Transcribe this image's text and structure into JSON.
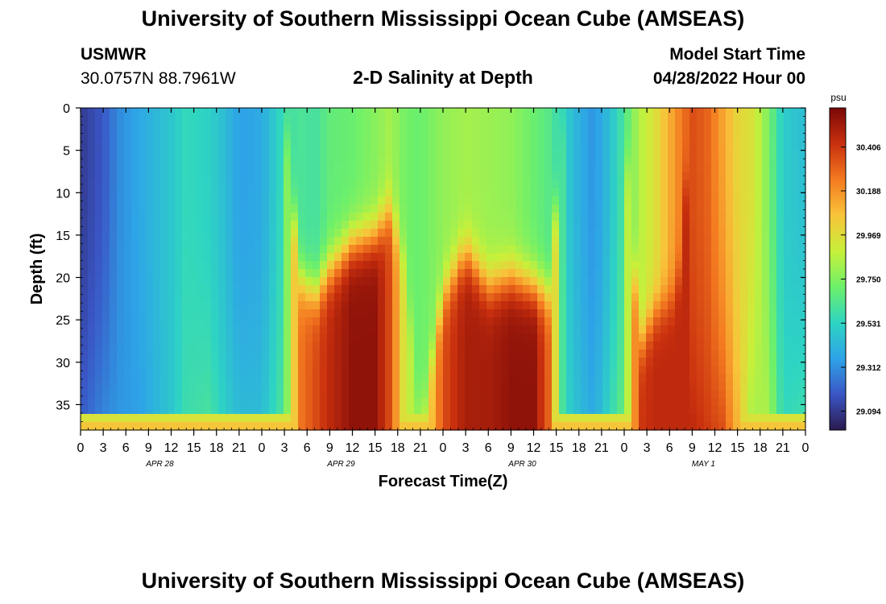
{
  "header": {
    "title": "University of Southern Mississippi Ocean Cube (AMSEAS)",
    "station": "USMWR",
    "coords": "30.0757N  88.7961W",
    "subtitle": "2-D Salinity at Depth",
    "model_start_label": "Model Start Time",
    "model_start_value": "04/28/2022 Hour 00"
  },
  "footer": {
    "title": "University of Southern Mississippi Ocean Cube (AMSEAS)"
  },
  "colors": {
    "ramp": [
      "#2b1a4e",
      "#3a56c5",
      "#2ea3e8",
      "#2ed5c2",
      "#6ef06a",
      "#c8f03a",
      "#f8c43a",
      "#f47a20",
      "#c9300e",
      "#7a0808"
    ]
  },
  "chart_data": {
    "type": "heatmap",
    "title": "2-D Salinity at Depth",
    "xlabel": "Forecast Time(Z)",
    "ylabel": "Depth (ft)",
    "x_ticks": [
      "0",
      "3",
      "6",
      "9",
      "12",
      "15",
      "18",
      "21",
      "0",
      "3",
      "6",
      "9",
      "12",
      "15",
      "18",
      "21",
      "0",
      "3",
      "6",
      "9",
      "12",
      "15",
      "18",
      "21",
      "0",
      "3",
      "6",
      "9",
      "12",
      "15",
      "18",
      "21",
      "0"
    ],
    "day_labels": [
      "APR 28",
      "APR 29",
      "APR 30",
      "MAY 1"
    ],
    "xlim_hours": [
      0,
      96
    ],
    "y_ticks": [
      0,
      5,
      10,
      15,
      20,
      25,
      30,
      35
    ],
    "ylim_ft": [
      0,
      38
    ],
    "colorbar": {
      "unit": "psu",
      "ticks": [
        "30.406",
        "30.188",
        "29.969",
        "29.750",
        "29.531",
        "29.312",
        "29.094"
      ],
      "range": [
        29.0,
        30.6
      ]
    },
    "columns": [
      {
        "h": 0,
        "s": 29.1,
        "b": 29.2,
        "z": 0,
        "sh": 0.0
      },
      {
        "h": 3,
        "s": 29.18,
        "b": 29.3,
        "z": 0,
        "sh": 0.0
      },
      {
        "h": 5,
        "s": 29.3,
        "b": 29.33,
        "z": 0,
        "sh": 0.0
      },
      {
        "h": 8,
        "s": 29.38,
        "b": 29.35,
        "z": 0,
        "sh": 0.0
      },
      {
        "h": 12,
        "s": 29.48,
        "b": 29.48,
        "z": 0,
        "sh": 0.0
      },
      {
        "h": 14,
        "s": 29.55,
        "b": 29.58,
        "z": 0,
        "sh": 0.0
      },
      {
        "h": 17,
        "s": 29.52,
        "b": 29.62,
        "z": 0,
        "sh": 0.0
      },
      {
        "h": 19,
        "s": 29.45,
        "b": 29.52,
        "z": 0,
        "sh": 0.0
      },
      {
        "h": 21,
        "s": 29.35,
        "b": 29.45,
        "z": 0,
        "sh": 0.0
      },
      {
        "h": 24,
        "s": 29.38,
        "b": 29.45,
        "z": 0,
        "sh": 0.0
      },
      {
        "h": 27,
        "s": 29.58,
        "b": 29.65,
        "z": 0,
        "sh": 0.0
      },
      {
        "h": 29,
        "s": 29.62,
        "b": 30.25,
        "z": 20,
        "sh": 0.0
      },
      {
        "h": 31,
        "s": 29.6,
        "b": 30.35,
        "z": 22,
        "sh": 0.0
      },
      {
        "h": 33,
        "s": 29.68,
        "b": 30.45,
        "z": 19,
        "sh": 0.0
      },
      {
        "h": 36,
        "s": 29.7,
        "b": 30.55,
        "z": 16,
        "sh": 0.0
      },
      {
        "h": 39,
        "s": 29.76,
        "b": 30.55,
        "z": 15,
        "sh": 0.0
      },
      {
        "h": 41,
        "s": 29.82,
        "b": 30.35,
        "z": 12,
        "sh": 0.0
      },
      {
        "h": 43,
        "s": 29.72,
        "b": 29.9,
        "z": 18,
        "sh": 0.0
      },
      {
        "h": 45,
        "s": 29.7,
        "b": 29.8,
        "z": 38,
        "sh": 0.0
      },
      {
        "h": 48,
        "s": 29.78,
        "b": 30.35,
        "z": 22,
        "sh": 0.0
      },
      {
        "h": 51,
        "s": 29.82,
        "b": 30.5,
        "z": 17,
        "sh": 0.0
      },
      {
        "h": 54,
        "s": 29.8,
        "b": 30.5,
        "z": 21,
        "sh": 0.0
      },
      {
        "h": 57,
        "s": 29.78,
        "b": 30.55,
        "z": 20,
        "sh": 0.0
      },
      {
        "h": 60,
        "s": 29.7,
        "b": 30.55,
        "z": 21,
        "sh": 0.0
      },
      {
        "h": 62,
        "s": 29.65,
        "b": 30.3,
        "z": 22,
        "sh": 0.0
      },
      {
        "h": 64,
        "s": 29.52,
        "b": 29.55,
        "z": 0,
        "sh": 0.0
      },
      {
        "h": 66,
        "s": 29.4,
        "b": 29.45,
        "z": 0,
        "sh": 0.0
      },
      {
        "h": 68,
        "s": 29.32,
        "b": 29.38,
        "z": 0,
        "sh": 0.0
      },
      {
        "h": 70,
        "s": 29.45,
        "b": 29.55,
        "z": 0,
        "sh": 0.0
      },
      {
        "h": 72,
        "s": 29.62,
        "b": 29.7,
        "z": 0,
        "sh": 0.0
      },
      {
        "h": 74,
        "s": 29.85,
        "b": 30.4,
        "z": 28,
        "sh": 0.0
      },
      {
        "h": 76,
        "s": 29.95,
        "b": 30.45,
        "z": 24,
        "sh": 0.0
      },
      {
        "h": 79,
        "s": 30.2,
        "b": 30.45,
        "z": 22,
        "sh": 0.0
      },
      {
        "h": 81,
        "s": 30.35,
        "b": 30.45,
        "z": 0,
        "sh": 0.0
      },
      {
        "h": 83,
        "s": 30.3,
        "b": 30.4,
        "z": 0,
        "sh": 0.0
      },
      {
        "h": 85,
        "s": 30.15,
        "b": 30.35,
        "z": 0,
        "sh": 0.0
      },
      {
        "h": 87,
        "s": 30.0,
        "b": 30.1,
        "z": 0,
        "sh": 0.0
      },
      {
        "h": 89,
        "s": 29.95,
        "b": 29.8,
        "z": 0,
        "sh": 0.0
      },
      {
        "h": 91,
        "s": 29.75,
        "b": 29.85,
        "z": 0,
        "sh": 0.0
      },
      {
        "h": 93,
        "s": 29.5,
        "b": 29.55,
        "z": 0,
        "sh": 0.0
      },
      {
        "h": 96,
        "s": 29.45,
        "b": 29.6,
        "z": 0,
        "sh": 0.0
      }
    ]
  }
}
